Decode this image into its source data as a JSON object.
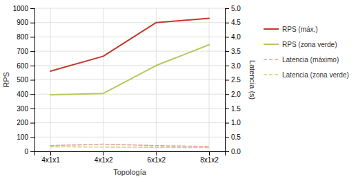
{
  "chart_data": {
    "type": "line",
    "categories": [
      "4x1x1",
      "4x1x2",
      "6x1x2",
      "8x1x2"
    ],
    "xlabel": "Topología",
    "ylabel": "RPS",
    "y2label": "Latencia (s)",
    "ylim": [
      0,
      1000
    ],
    "yticks": [
      0,
      100,
      200,
      300,
      400,
      500,
      600,
      700,
      800,
      900,
      1000
    ],
    "y2lim": [
      0,
      5
    ],
    "y2ticks": [
      {
        "value": 0,
        "label": "0.0"
      },
      0.5,
      {
        "value": 1,
        "label": "1.0"
      },
      1.5,
      {
        "value": 2,
        "label": "2.0"
      },
      2.5,
      {
        "value": 3,
        "label": "3.0"
      },
      3.5,
      {
        "value": 4,
        "label": "4.0"
      },
      4.5,
      {
        "value": 5,
        "label": "5.0"
      }
    ],
    "grid": true,
    "legend": "right",
    "series": [
      {
        "name": "RPS (máx.)",
        "color": "#c0392b",
        "line_style": "solid",
        "values": [
          560,
          665,
          900,
          930
        ]
      },
      {
        "name": "RPS (zona verde)",
        "color": "#b5c95a",
        "line_style": "solid",
        "values": [
          395,
          405,
          600,
          745
        ]
      },
      {
        "name": "Latencia (máximo)",
        "color": "#e8a0a0",
        "line_style": "dashed",
        "axis": "y2",
        "values": [
          0.2,
          0.25,
          0.2,
          0.17
        ]
      },
      {
        "name": "Latencia (zona verde)",
        "color": "#c8d870",
        "line_style": "dashed",
        "axis": "y2",
        "values": [
          0.16,
          0.15,
          0.14,
          0.13
        ]
      }
    ]
  }
}
